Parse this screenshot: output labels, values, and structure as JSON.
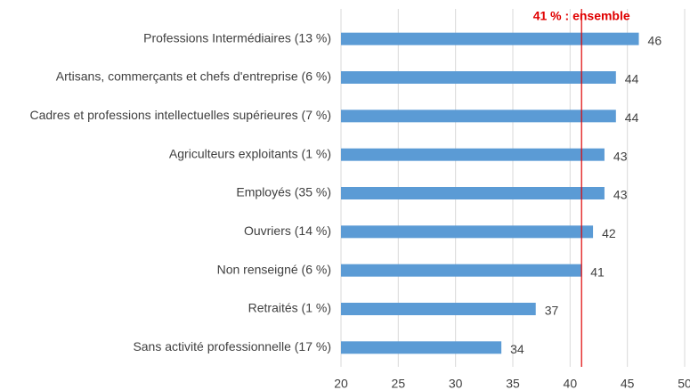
{
  "chart_data": {
    "type": "bar",
    "orientation": "horizontal",
    "categories": [
      "Professions Intermédiaires (13 %)",
      "Artisans, commerçants et chefs d'entreprise (6 %)",
      "Cadres et professions intellectuelles supérieures (7 %)",
      "Agriculteurs exploitants (1 %)",
      "Employés (35 %)",
      "Ouvriers (14 %)",
      "Non renseigné (6 %)",
      "Retraités (1 %)",
      "Sans activité professionnelle (17 %)"
    ],
    "values": [
      46,
      44,
      44,
      43,
      43,
      42,
      41,
      37,
      34
    ],
    "color": "#5b9bd5",
    "xlim": [
      20,
      50
    ],
    "xticks": [
      20,
      25,
      30,
      35,
      40,
      45,
      50
    ],
    "grid": true,
    "reference_line": {
      "value": 41,
      "label": "41 % : ensemble",
      "color": "#e00000"
    }
  }
}
